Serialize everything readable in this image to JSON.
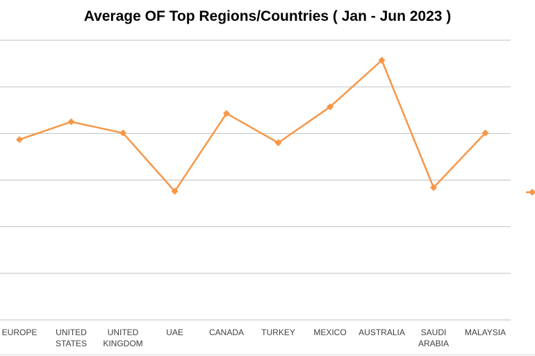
{
  "chart_data": {
    "type": "line",
    "title": "Average OF Top Regions/Countries ( Jan - Jun 2023 )",
    "categories": [
      [
        "EUROPE"
      ],
      [
        "UNITED",
        "STATES"
      ],
      [
        "UNITED",
        "KINGDOM"
      ],
      [
        "UAE"
      ],
      [
        "CANADA"
      ],
      [
        "TURKEY"
      ],
      [
        "MEXICO"
      ],
      [
        "AUSTRALIA"
      ],
      [
        "SAUDI",
        "ARABIA"
      ],
      [
        "MALAYSIA"
      ]
    ],
    "series": [
      {
        "color": "#f79646",
        "marker": "diamond",
        "values": [
          3.87,
          4.25,
          4.01,
          2.76,
          4.43,
          3.8,
          4.57,
          5.57,
          2.84,
          4.01
        ]
      }
    ],
    "ylim": [
      0,
      6
    ],
    "gridlines": [
      0,
      1,
      2,
      3,
      4,
      5,
      6
    ],
    "grid": true,
    "legend": "right"
  }
}
